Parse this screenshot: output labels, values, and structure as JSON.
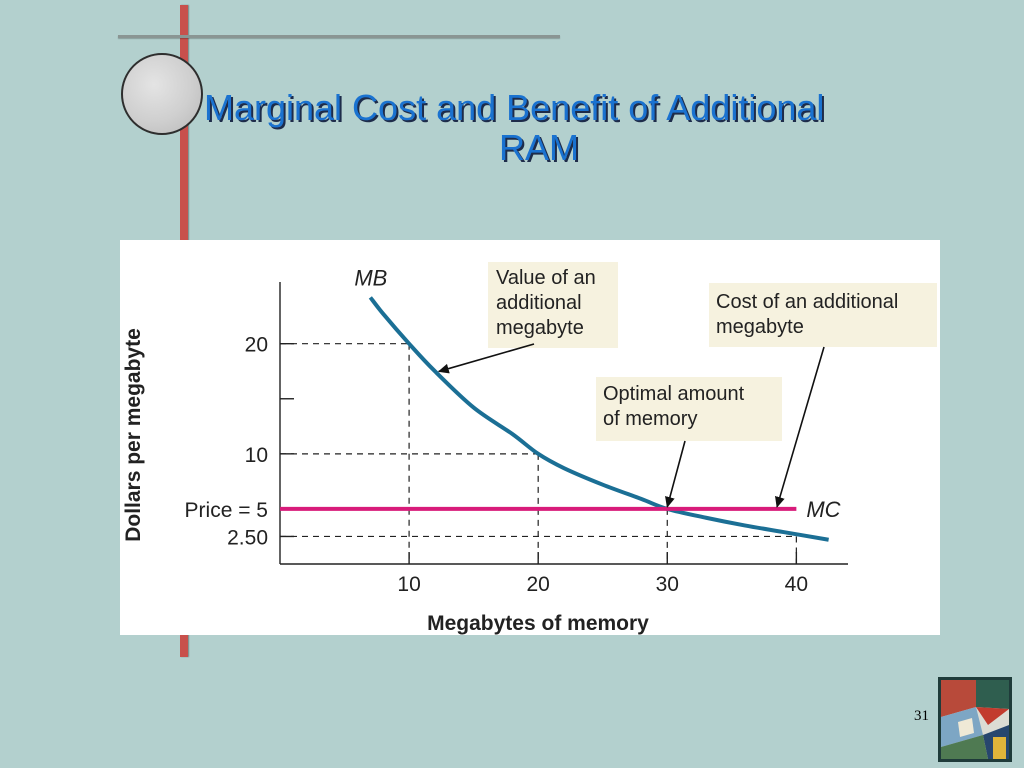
{
  "slide": {
    "title_line1": "Marginal Cost and Benefit of Additional",
    "title_line2": "RAM",
    "page_number": "31"
  },
  "chart_data": {
    "type": "line",
    "xlabel": "Megabytes of memory",
    "ylabel": "Dollars per megabyte",
    "xlim": [
      0,
      44
    ],
    "ylim": [
      0,
      25.6
    ],
    "x_ticks": [
      {
        "value": 10,
        "label": "10"
      },
      {
        "value": 20,
        "label": "20"
      },
      {
        "value": 30,
        "label": "30"
      },
      {
        "value": 40,
        "label": "40"
      }
    ],
    "y_ticks": [
      {
        "value": 2.5,
        "label": "2.50"
      },
      {
        "value": 5,
        "label": "Price = 5"
      },
      {
        "value": 10,
        "label": "10"
      },
      {
        "value": 15,
        "label": ""
      },
      {
        "value": 20,
        "label": "20"
      }
    ],
    "series": [
      {
        "name": "MB",
        "color": "#1b6f95",
        "x": [
          7,
          8,
          10,
          12,
          15,
          18,
          20,
          22,
          25,
          28,
          30,
          33,
          36,
          39,
          42.5
        ],
        "y": [
          24.2,
          22.7,
          20,
          17.5,
          14.2,
          11.8,
          10.0,
          8.7,
          7.2,
          5.9,
          5.0,
          4.2,
          3.5,
          2.9,
          2.2
        ]
      },
      {
        "name": "MC",
        "color": "#d81b7a",
        "x": [
          0,
          40
        ],
        "y": [
          5,
          5
        ]
      }
    ],
    "reference_points": [
      {
        "x": 10,
        "y": 20
      },
      {
        "x": 20,
        "y": 10
      },
      {
        "x": 30,
        "y": 5
      },
      {
        "x": 40,
        "y": 2.5
      }
    ],
    "annotations": [
      {
        "lines": [
          "Value of an",
          "additional",
          "megabyte"
        ],
        "points_to": {
          "x": 12.3,
          "y": 17.3
        }
      },
      {
        "lines": [
          "Optimal amount",
          "of memory"
        ],
        "points_to": {
          "x": 30,
          "y": 5
        }
      },
      {
        "lines": [
          "Cost of an additional",
          "megabyte"
        ],
        "points_to": {
          "x": 38.5,
          "y": 5
        }
      }
    ]
  },
  "colors": {
    "background": "#b3d0ce",
    "title": "#1a72d0",
    "accent_bar": "#c8504c",
    "annotation_box": "#f6f2df"
  },
  "icons": {
    "logo": "geometric-quilt-logo-icon"
  }
}
